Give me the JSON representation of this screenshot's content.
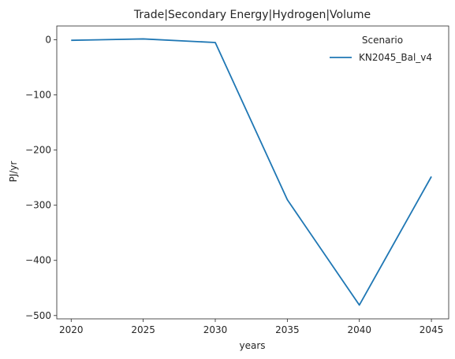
{
  "chart_data": {
    "type": "line",
    "title": "Trade|Secondary Energy|Hydrogen|Volume",
    "xlabel": "years",
    "ylabel": "PJ/yr",
    "x": [
      2020,
      2025,
      2030,
      2035,
      2040,
      2045
    ],
    "series": [
      {
        "name": "KN2045_Bal_v4",
        "color": "#1f77b4",
        "values": [
          -1,
          1.5,
          -5,
          -290,
          -481,
          -248
        ]
      }
    ],
    "xlim": [
      2019,
      2046.2
    ],
    "ylim": [
      -506,
      25
    ],
    "xticks": [
      2020,
      2025,
      2030,
      2035,
      2040,
      2045
    ],
    "yticks": [
      0,
      -100,
      -200,
      -300,
      -400,
      -500
    ],
    "legend": {
      "title": "Scenario",
      "placement": "top-right"
    },
    "grid": false
  }
}
